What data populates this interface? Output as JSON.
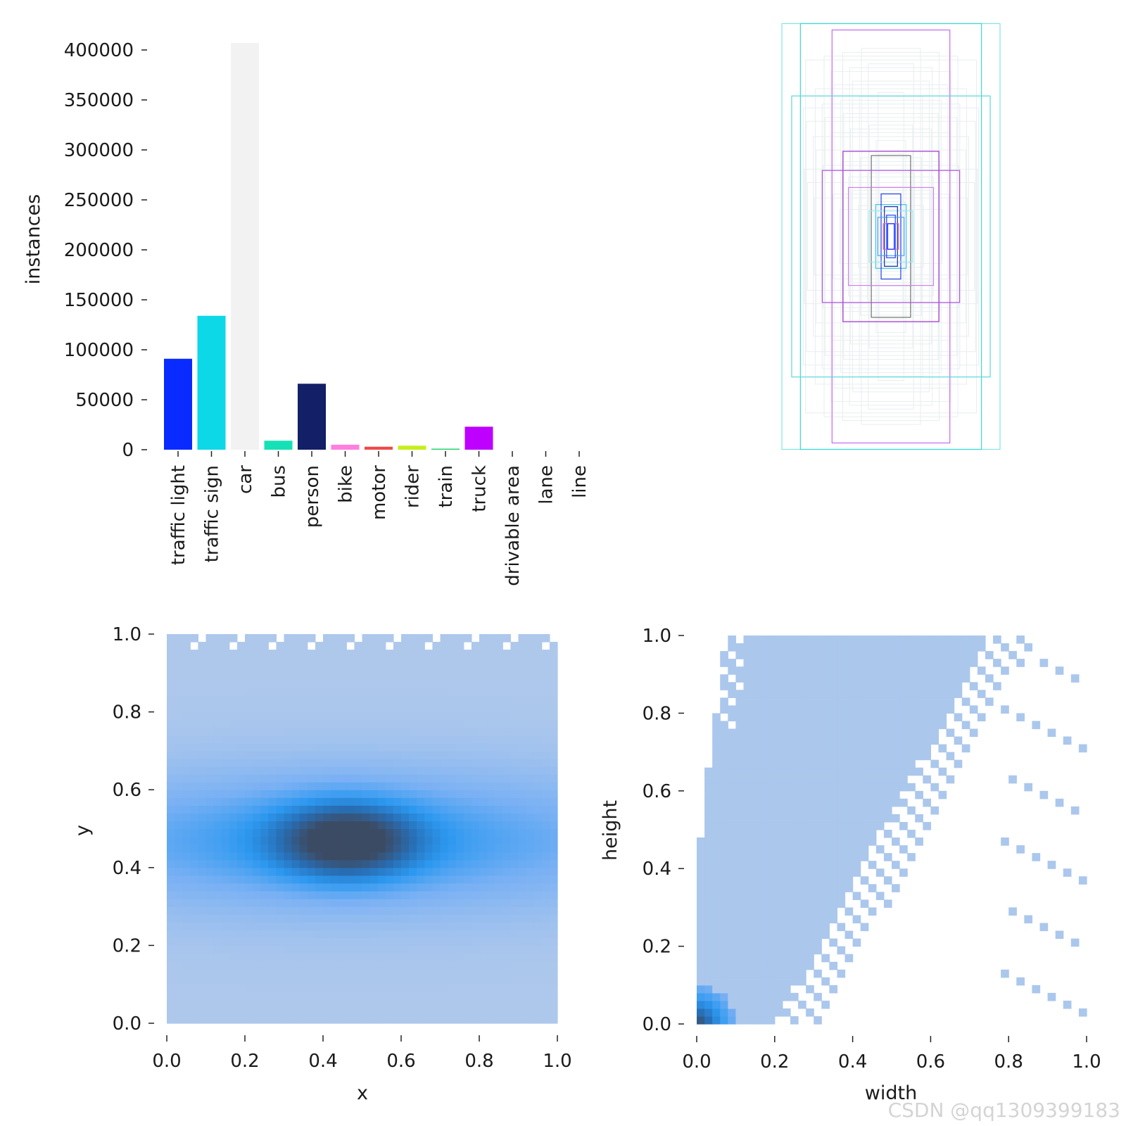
{
  "chart_data": [
    {
      "id": "bar",
      "type": "bar",
      "title": "",
      "xlabel": "",
      "ylabel": "instances",
      "ylim": [
        0,
        400000
      ],
      "yticks": [
        "0",
        "50000",
        "100000",
        "150000",
        "200000",
        "250000",
        "300000",
        "350000",
        "400000"
      ],
      "categories": [
        "traffic light",
        "traffic sign",
        "car",
        "bus",
        "person",
        "bike",
        "motor",
        "rider",
        "train",
        "truck",
        "drivable area",
        "lane",
        "line"
      ],
      "values": [
        91000,
        134000,
        407000,
        9000,
        66000,
        5000,
        3000,
        4000,
        1000,
        23000,
        0,
        0,
        0
      ],
      "colors": [
        "#0a2bff",
        "#0cd8e8",
        "#f2f2f2",
        "#14e2b6",
        "#131f66",
        "#ff7fdf",
        "#ef4a4a",
        "#c6ef1c",
        "#1ed16a",
        "#bd00ff",
        "#ffffff",
        "#ffffff",
        "#ffffff"
      ]
    },
    {
      "id": "boxes",
      "type": "other",
      "description_free": true,
      "boxes_wh": [
        {
          "w": 1.0,
          "h": 1.0,
          "color": "#7fe6e0"
        },
        {
          "w": 0.83,
          "h": 1.0,
          "color": "#3cd8d0"
        },
        {
          "w": 0.54,
          "h": 0.97,
          "color": "#c06cf0"
        },
        {
          "w": 0.91,
          "h": 0.66,
          "color": "#5ad8d8"
        },
        {
          "w": 0.44,
          "h": 0.4,
          "color": "#a030d0"
        },
        {
          "w": 0.18,
          "h": 0.38,
          "color": "#707070"
        },
        {
          "w": 0.63,
          "h": 0.31,
          "color": "#b050e0"
        },
        {
          "w": 0.39,
          "h": 0.23,
          "color": "#d080f0"
        },
        {
          "w": 0.14,
          "h": 0.15,
          "color": "#40c8f0"
        },
        {
          "w": 0.09,
          "h": 0.2,
          "color": "#2040e0"
        },
        {
          "w": 0.2,
          "h": 0.12,
          "color": "#9ae8f0"
        },
        {
          "w": 0.06,
          "h": 0.14,
          "color": "#1828a0"
        },
        {
          "w": 0.12,
          "h": 0.09,
          "color": "#50a0ff"
        },
        {
          "w": 0.04,
          "h": 0.1,
          "color": "#2040ff"
        },
        {
          "w": 0.07,
          "h": 0.06,
          "color": "#d060e0"
        },
        {
          "w": 0.03,
          "h": 0.06,
          "color": "#0a2bff"
        }
      ]
    },
    {
      "id": "xy",
      "type": "heatmap",
      "xlabel": "x",
      "ylabel": "y",
      "xlim": [
        0,
        1
      ],
      "ylim": [
        0,
        1
      ],
      "xticks": [
        "0.0",
        "0.2",
        "0.4",
        "0.6",
        "0.8",
        "1.0"
      ],
      "yticks": [
        "0.0",
        "0.2",
        "0.4",
        "0.6",
        "0.8",
        "1.0"
      ],
      "peak": [
        0.46,
        0.47
      ]
    },
    {
      "id": "wh",
      "type": "heatmap",
      "xlabel": "width",
      "ylabel": "height",
      "xlim": [
        0,
        1
      ],
      "ylim": [
        0,
        1
      ],
      "xticks": [
        "0.0",
        "0.2",
        "0.4",
        "0.6",
        "0.8",
        "1.0"
      ],
      "yticks": [
        "0.0",
        "0.2",
        "0.4",
        "0.6",
        "0.8",
        "1.0"
      ],
      "peak": [
        0.01,
        0.02
      ]
    }
  ],
  "watermark": "CSDN @qq1309399183"
}
